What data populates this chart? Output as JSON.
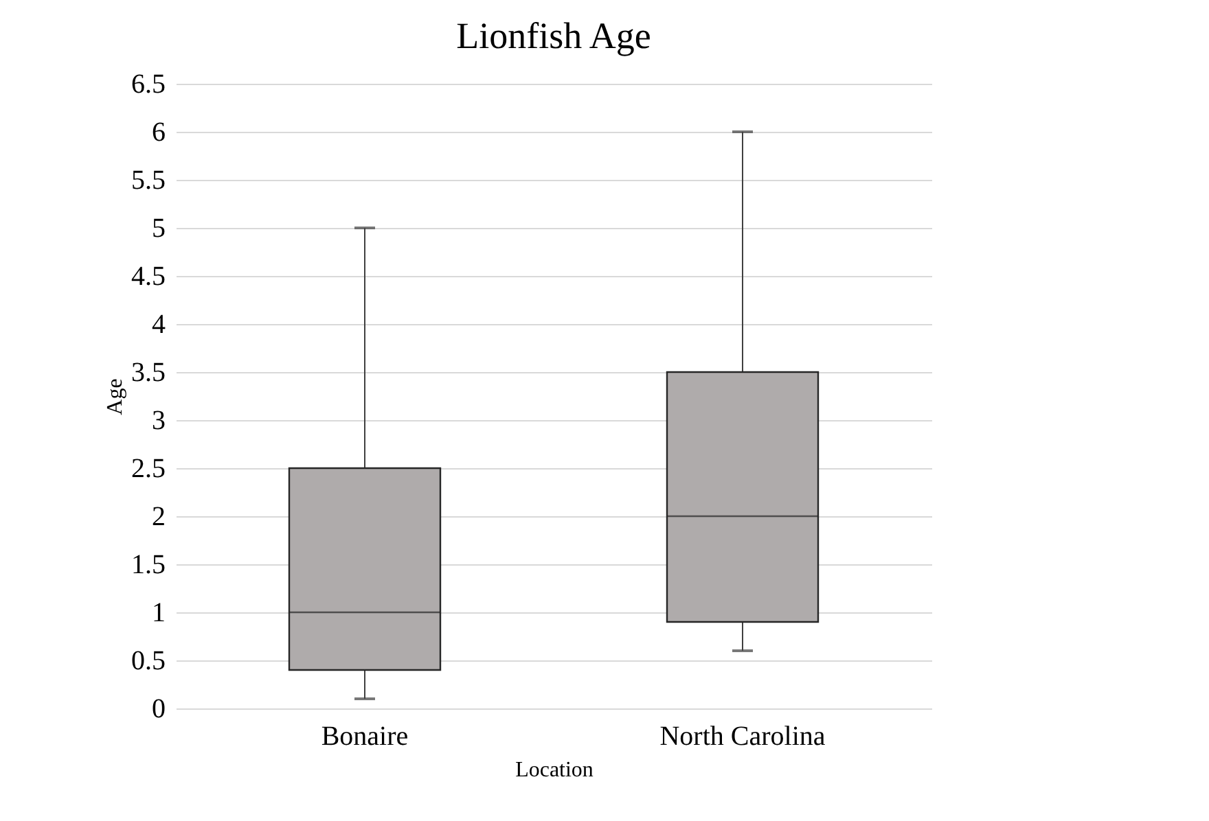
{
  "chart_data": {
    "type": "box",
    "title": "Lionfish Age",
    "xlabel": "Location",
    "ylabel": "Age",
    "categories": [
      "Bonaire",
      "North Carolina"
    ],
    "series": [
      {
        "color": "#afabab",
        "boxes": [
          {
            "low": 0.1,
            "q1": 0.4,
            "median": 1,
            "q3": 2.5,
            "high": 5
          },
          {
            "low": 0.6,
            "q1": 0.9,
            "median": 2,
            "q3": 3.5,
            "high": 6
          }
        ]
      }
    ],
    "ylim": [
      0,
      6.5
    ],
    "yticks": [
      0,
      0.5,
      1,
      1.5,
      2,
      2.5,
      3,
      3.5,
      4,
      4.5,
      5,
      5.5,
      6,
      6.5
    ],
    "grid": "y"
  }
}
